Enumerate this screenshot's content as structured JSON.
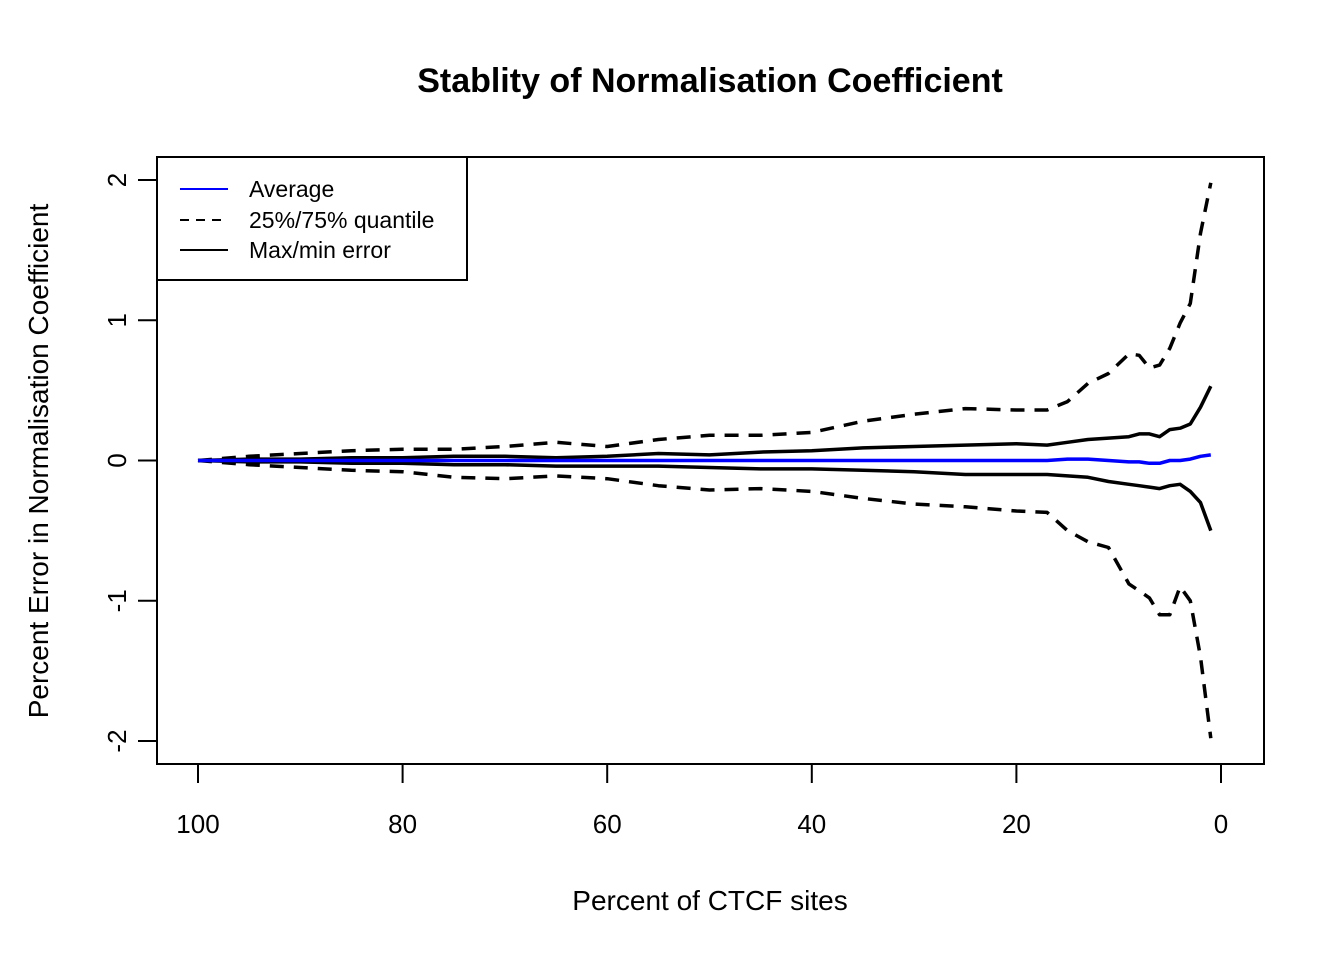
{
  "chart_data": {
    "type": "line",
    "title": "Stablity of Normalisation Coefficient",
    "xlabel": "Percent of CTCF sites",
    "ylabel": "Percent Error in Normalisation Coefficient",
    "xlim": [
      100,
      0
    ],
    "ylim": [
      -2.15,
      2.15
    ],
    "x_ticks": [
      100,
      80,
      60,
      40,
      20,
      0
    ],
    "y_ticks": [
      -2,
      -1,
      0,
      1,
      2
    ],
    "grid": false,
    "legend_position": "top-left",
    "legend": [
      {
        "label": "Average",
        "color": "#0000ff",
        "style": "solid"
      },
      {
        "label": "25%/75% quantile",
        "color": "#000000",
        "style": "dashed"
      },
      {
        "label": "Max/min error",
        "color": "#000000",
        "style": "solid"
      }
    ],
    "x": [
      100,
      95,
      90,
      85,
      80,
      75,
      70,
      65,
      60,
      55,
      50,
      45,
      40,
      35,
      30,
      25,
      20,
      17,
      15,
      13,
      11,
      9,
      8,
      7,
      6,
      5,
      4,
      3,
      2,
      1
    ],
    "series": [
      {
        "name": "Average",
        "color": "#0000ff",
        "style": "solid",
        "values": [
          0,
          0,
          0,
          0,
          0,
          0,
          0,
          0,
          0,
          0,
          0,
          0,
          0,
          0,
          0,
          0,
          0,
          0,
          0.01,
          0.01,
          0,
          -0.01,
          -0.01,
          -0.02,
          -0.02,
          0,
          0,
          0.01,
          0.03,
          0.04
        ]
      },
      {
        "name": "Max error",
        "color": "#000000",
        "style": "solid",
        "values": [
          0,
          0.01,
          0.01,
          0.02,
          0.02,
          0.03,
          0.03,
          0.02,
          0.03,
          0.05,
          0.04,
          0.06,
          0.07,
          0.09,
          0.1,
          0.11,
          0.12,
          0.11,
          0.13,
          0.15,
          0.16,
          0.17,
          0.19,
          0.19,
          0.17,
          0.22,
          0.23,
          0.26,
          0.38,
          0.53
        ]
      },
      {
        "name": "Min error",
        "color": "#000000",
        "style": "solid",
        "values": [
          0,
          -0.01,
          -0.01,
          -0.02,
          -0.02,
          -0.03,
          -0.03,
          -0.04,
          -0.04,
          -0.04,
          -0.05,
          -0.06,
          -0.06,
          -0.07,
          -0.08,
          -0.1,
          -0.1,
          -0.1,
          -0.11,
          -0.12,
          -0.15,
          -0.17,
          -0.18,
          -0.19,
          -0.2,
          -0.18,
          -0.17,
          -0.22,
          -0.3,
          -0.5
        ]
      },
      {
        "name": "75% quantile",
        "color": "#000000",
        "style": "dashed",
        "values": [
          0,
          0.03,
          0.05,
          0.07,
          0.08,
          0.08,
          0.1,
          0.13,
          0.1,
          0.15,
          0.18,
          0.18,
          0.2,
          0.28,
          0.33,
          0.37,
          0.36,
          0.36,
          0.42,
          0.55,
          0.62,
          0.76,
          0.75,
          0.66,
          0.68,
          0.8,
          0.98,
          1.12,
          1.62,
          1.98
        ]
      },
      {
        "name": "25% quantile",
        "color": "#000000",
        "style": "dashed",
        "values": [
          0,
          -0.03,
          -0.05,
          -0.07,
          -0.08,
          -0.12,
          -0.13,
          -0.11,
          -0.13,
          -0.18,
          -0.21,
          -0.2,
          -0.22,
          -0.27,
          -0.31,
          -0.33,
          -0.36,
          -0.37,
          -0.5,
          -0.58,
          -0.62,
          -0.88,
          -0.93,
          -0.98,
          -1.1,
          -1.1,
          -0.9,
          -1.0,
          -1.4,
          -1.98
        ]
      }
    ]
  }
}
